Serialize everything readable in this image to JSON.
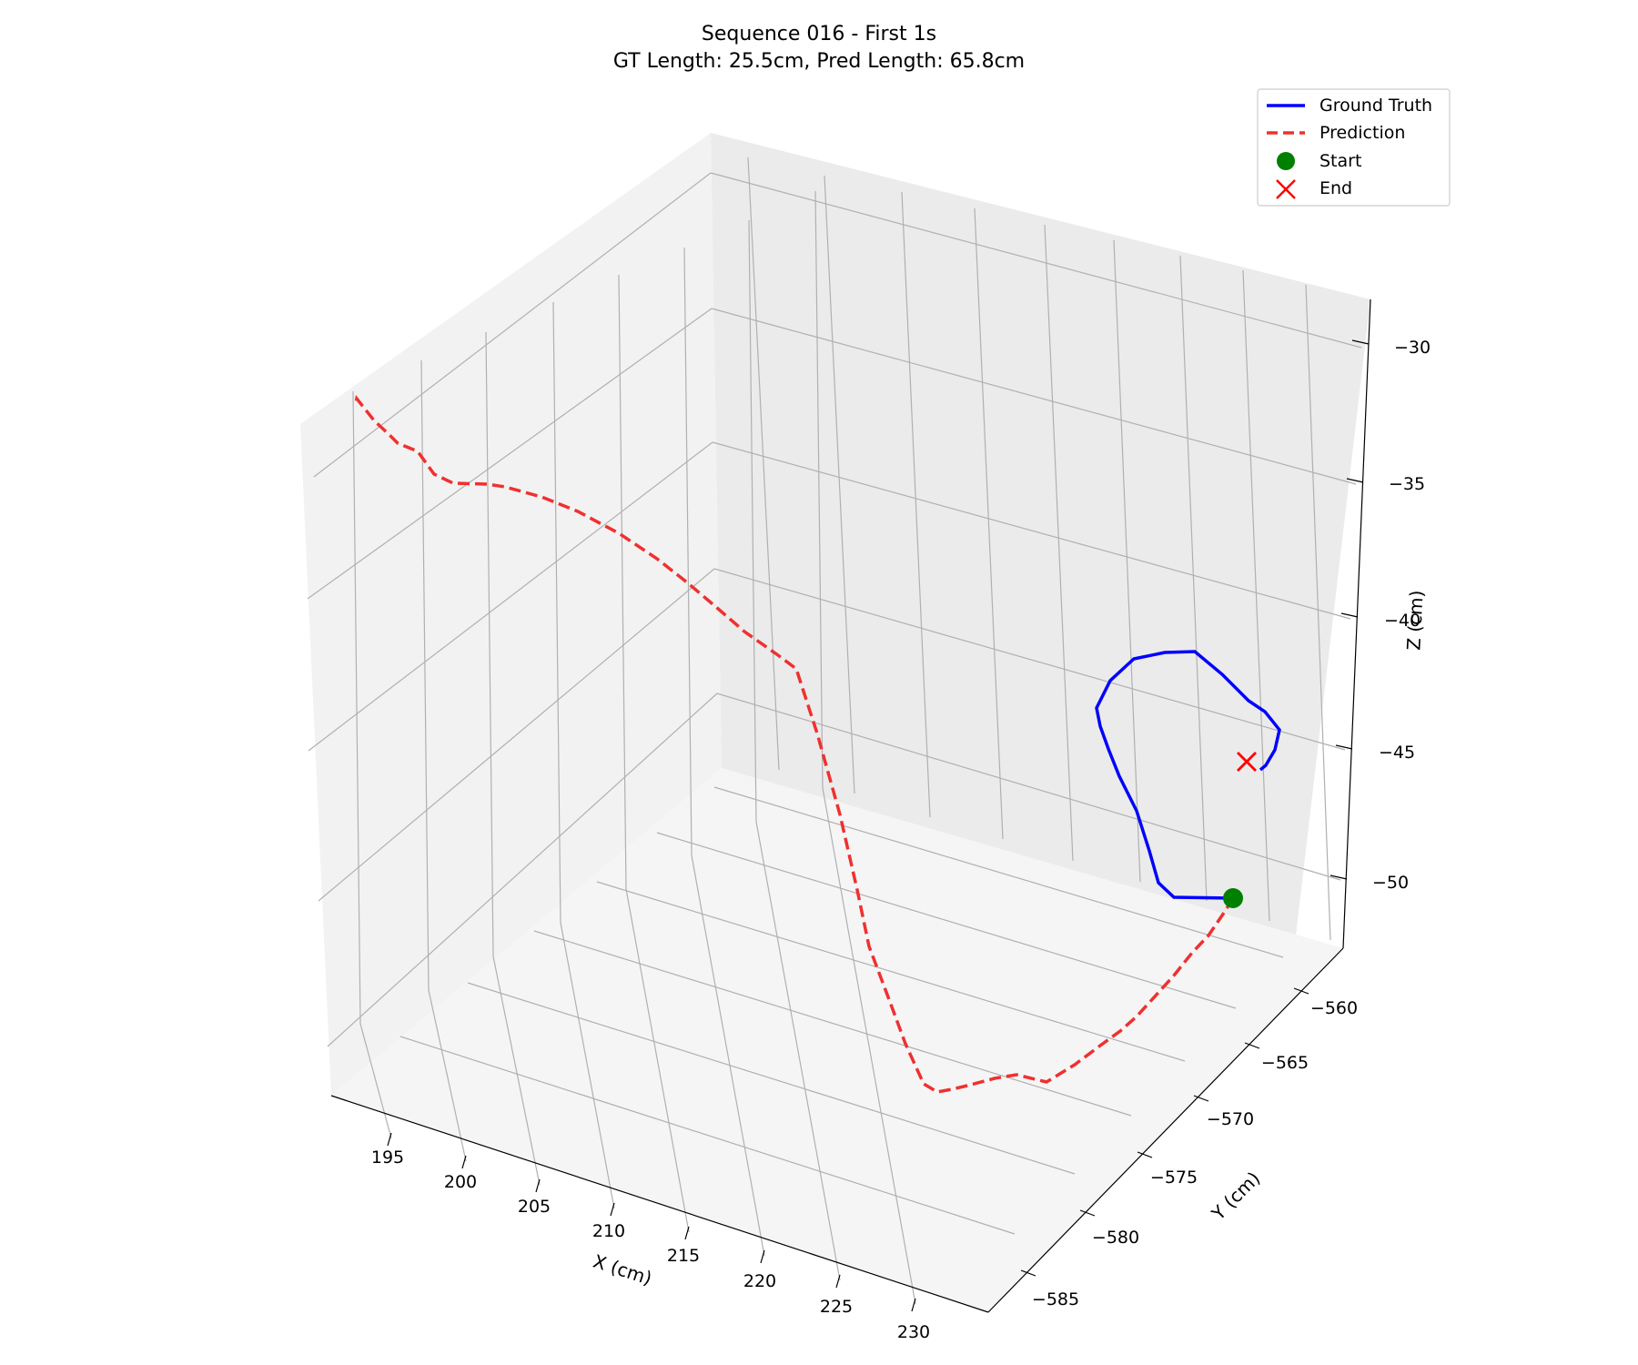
{
  "chart_data": {
    "type": "line",
    "projection": "3d",
    "title": "Sequence 016 - First 1s",
    "subtitle": "GT Length: 25.5cm, Pred Length: 65.8cm",
    "xlabel": "X (cm)",
    "ylabel": "Y (cm)",
    "zlabel": "Z (cm)",
    "xlim": [
      192,
      232
    ],
    "ylim": [
      -588,
      -557
    ],
    "zlim": [
      -52.5,
      -29
    ],
    "x_ticks": [
      "195",
      "200",
      "205",
      "210",
      "215",
      "220",
      "225",
      "230"
    ],
    "y_ticks": [
      "−560",
      "−565",
      "−570",
      "−575",
      "−580",
      "−585"
    ],
    "z_ticks": [
      "−30",
      "−35",
      "−40",
      "−45",
      "−50"
    ],
    "grid": true,
    "legend_position": "top-right",
    "colors": {
      "ground_truth": "#0000ff",
      "prediction": "#f03030",
      "start": "#008000",
      "end": "#ff0000"
    },
    "legend": [
      {
        "label": "Ground Truth",
        "style": "solid-line",
        "color": "#0000ff"
      },
      {
        "label": "Prediction",
        "style": "dashed-line",
        "color": "#f03030"
      },
      {
        "label": "Start",
        "style": "circle-marker",
        "color": "#008000"
      },
      {
        "label": "End",
        "style": "x-marker",
        "color": "#ff0000"
      }
    ],
    "series": [
      {
        "name": "Ground Truth",
        "points": [
          [
            1355,
            987
          ],
          [
            1290,
            986
          ],
          [
            1273,
            970
          ],
          [
            1263,
            935
          ],
          [
            1249,
            891
          ],
          [
            1230,
            853
          ],
          [
            1218,
            823
          ],
          [
            1209,
            798
          ],
          [
            1205,
            778
          ],
          [
            1220,
            748
          ],
          [
            1246,
            724
          ],
          [
            1280,
            717
          ],
          [
            1313,
            716
          ],
          [
            1343,
            741
          ],
          [
            1372,
            770
          ],
          [
            1390,
            782
          ],
          [
            1406,
            802
          ],
          [
            1401,
            824
          ],
          [
            1391,
            841
          ],
          [
            1385,
            846
          ]
        ]
      },
      {
        "name": "Prediction",
        "points": [
          [
            1355,
            987
          ],
          [
            1345,
            1003
          ],
          [
            1328,
            1028
          ],
          [
            1310,
            1047
          ],
          [
            1290,
            1072
          ],
          [
            1270,
            1094
          ],
          [
            1249,
            1117
          ],
          [
            1231,
            1133
          ],
          [
            1209,
            1149
          ],
          [
            1181,
            1170
          ],
          [
            1150,
            1189
          ],
          [
            1117,
            1181
          ],
          [
            1093,
            1185
          ],
          [
            1063,
            1193
          ],
          [
            1046,
            1197
          ],
          [
            1030,
            1200
          ],
          [
            1015,
            1191
          ],
          [
            995,
            1147
          ],
          [
            975,
            1093
          ],
          [
            955,
            1040
          ],
          [
            942,
            978
          ],
          [
            923,
            895
          ],
          [
            898,
            806
          ],
          [
            875,
            735
          ],
          [
            855,
            720
          ],
          [
            818,
            694
          ],
          [
            788,
            668
          ],
          [
            755,
            640
          ],
          [
            722,
            614
          ],
          [
            680,
            586
          ],
          [
            635,
            562
          ],
          [
            595,
            546
          ],
          [
            555,
            535
          ],
          [
            535,
            532
          ],
          [
            498,
            531
          ],
          [
            477,
            521
          ],
          [
            459,
            496
          ],
          [
            437,
            487
          ],
          [
            428,
            478
          ],
          [
            411,
            462
          ],
          [
            392,
            438
          ],
          [
            391,
            443
          ]
        ]
      }
    ],
    "start_point": [
      1355,
      987
    ],
    "end_point": [
      1370,
      837
    ]
  }
}
